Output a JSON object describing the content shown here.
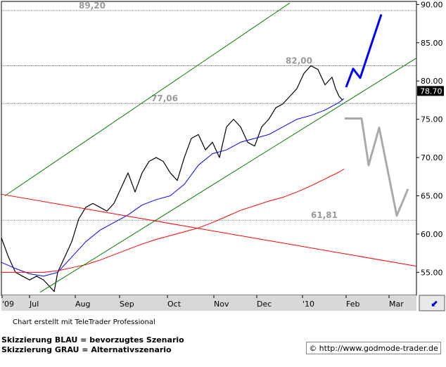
{
  "chart_data": {
    "type": "line",
    "y_axis": {
      "ticks": [
        "90.00",
        "85.00",
        "80.00",
        "75.00",
        "70.00",
        "65.00",
        "60.00",
        "55.00"
      ],
      "ylim": [
        52.0,
        90.4
      ]
    },
    "x_axis": {
      "ticks": [
        "'09",
        "Jul",
        "Aug",
        "Sep",
        "Oct",
        "Nov",
        "Dec",
        "'10",
        "Feb",
        "Mar"
      ]
    },
    "last_price": "78.70",
    "levels": [
      {
        "label": "89,20",
        "value": 89.2
      },
      {
        "label": "82,00",
        "value": 82.0
      },
      {
        "label": "77,06",
        "value": 77.06
      },
      {
        "label": "61,81",
        "value": 61.81
      }
    ],
    "series": [
      {
        "color": "#000000",
        "kind": "price",
        "x": [
          0,
          10,
          20,
          30,
          40,
          50,
          60,
          70,
          75,
          80,
          90,
          100,
          110,
          120,
          130,
          140,
          150,
          160,
          170,
          180,
          190,
          200,
          210,
          220,
          230,
          240,
          250,
          260,
          270,
          280,
          290,
          300,
          310,
          320,
          330,
          340,
          350,
          360,
          370,
          380,
          390,
          400,
          410,
          420,
          430,
          440,
          450,
          460,
          470,
          475,
          480,
          485
        ],
        "values": [
          59.5,
          57,
          55,
          54.5,
          54,
          54.5,
          54,
          53,
          52.5,
          55,
          57,
          59,
          62,
          63.5,
          64,
          63.5,
          63,
          64,
          66,
          68,
          65.5,
          68,
          69.5,
          70,
          69.5,
          68,
          67,
          70,
          72.5,
          73,
          71,
          72,
          70,
          74,
          75,
          74,
          72,
          71.5,
          74,
          75,
          76.5,
          77,
          78,
          79,
          81,
          82,
          81.5,
          79.5,
          80.5,
          79,
          78,
          77.5
        ]
      },
      {
        "color": "#0000ff",
        "kind": "ma",
        "x": [
          0,
          20,
          40,
          60,
          80,
          100,
          120,
          140,
          160,
          180,
          200,
          220,
          240,
          260,
          280,
          300,
          320,
          340,
          360,
          380,
          400,
          420,
          440,
          460,
          480,
          487
        ],
        "values": [
          56.3,
          55.5,
          54.8,
          54.5,
          55,
          57,
          59,
          60.5,
          61.5,
          62.5,
          63.8,
          64.5,
          65,
          66.5,
          69,
          70.5,
          71,
          72,
          72.5,
          73,
          74,
          75,
          75.5,
          76.2,
          77.2,
          77.7
        ]
      },
      {
        "color": "#ff0000",
        "kind": "ma",
        "x": [
          0,
          20,
          40,
          60,
          80,
          100,
          120,
          140,
          160,
          180,
          200,
          220,
          240,
          260,
          280,
          300,
          320,
          340,
          360,
          380,
          400,
          420,
          440,
          460,
          480,
          487
        ],
        "values": [
          55,
          55,
          55,
          55,
          55.2,
          55.6,
          56,
          56.6,
          57.3,
          58,
          58.7,
          59.3,
          59.8,
          60.3,
          60.8,
          61.5,
          62.3,
          63.1,
          63.7,
          64.3,
          64.8,
          65.5,
          66.3,
          67.2,
          68.1,
          68.5
        ]
      },
      {
        "color": "#008000",
        "kind": "channel",
        "x": [
          5,
          410
        ],
        "values": [
          65,
          90.2
        ]
      },
      {
        "color": "#008000",
        "kind": "channel",
        "x": [
          55,
          590
        ],
        "values": [
          52.4,
          83
        ]
      },
      {
        "color": "#ff0000",
        "kind": "trend",
        "x": [
          0,
          590
        ],
        "values": [
          65.2,
          55.8
        ]
      },
      {
        "color": "#0000ff",
        "kind": "scenario",
        "name": "BLAU",
        "x": [
          490,
          500,
          510,
          540
        ],
        "values": [
          79.2,
          81.6,
          80.4,
          88.7
        ]
      },
      {
        "color": "#aaaaaa",
        "kind": "scenario",
        "name": "GRAU",
        "x": [
          488,
          512,
          522,
          537,
          562,
          578
        ],
        "values": [
          75.1,
          75.1,
          69,
          73.9,
          62.4,
          65.9
        ]
      }
    ]
  },
  "footer": {
    "credit": "Chart erstellt mit TeleTrader Professional",
    "legend_blau": "Skizzierung BLAU = bevorzugtes Szenario",
    "legend_grau": "Skizzierung GRAU = Alternativszenario",
    "url": "© http://www.godmode-trader.de"
  }
}
